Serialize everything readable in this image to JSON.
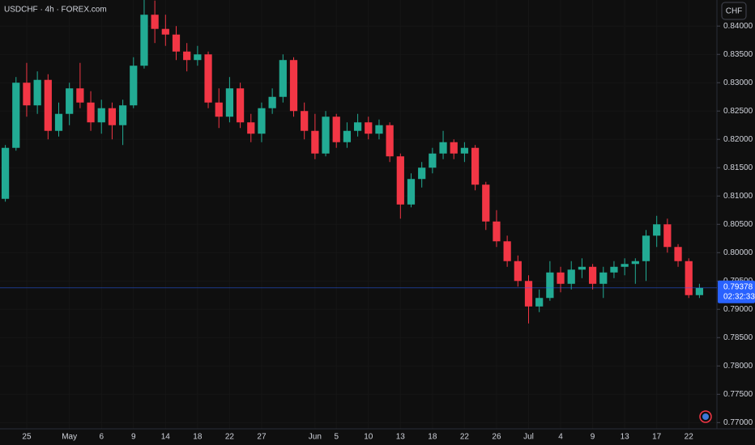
{
  "chart_data": {
    "type": "candlestick",
    "title": "USDCHF · 4h · FOREX.com",
    "currency": "CHF",
    "up_color": "#22ab94",
    "down_color": "#f23645",
    "grid": true,
    "categories": [
      null,
      null,
      "25",
      null,
      null,
      null,
      "May",
      null,
      null,
      "6",
      null,
      null,
      "9",
      null,
      null,
      "14",
      null,
      null,
      "18",
      null,
      null,
      "22",
      null,
      null,
      "27",
      null,
      null,
      null,
      null,
      "Jun",
      null,
      "5",
      null,
      null,
      "10",
      null,
      null,
      "13",
      null,
      null,
      "18",
      null,
      null,
      "22",
      null,
      null,
      "26",
      null,
      null,
      "Jul",
      null,
      null,
      "4",
      null,
      null,
      "9",
      null,
      null,
      "13",
      null,
      null,
      "17",
      null,
      null,
      "22",
      null
    ],
    "open": [
      0.8095,
      0.8185,
      0.83,
      0.826,
      0.8305,
      0.8215,
      0.8245,
      0.829,
      0.8265,
      0.823,
      0.8255,
      0.8225,
      0.826,
      0.833,
      0.842,
      0.8395,
      0.8385,
      0.8355,
      0.834,
      0.835,
      0.8265,
      0.824,
      0.829,
      0.823,
      0.821,
      0.8255,
      0.8275,
      0.834,
      0.825,
      0.8215,
      0.8175,
      0.824,
      0.8195,
      0.8215,
      0.823,
      0.821,
      0.8225,
      0.817,
      0.8085,
      0.813,
      0.815,
      0.8175,
      0.8195,
      0.8175,
      0.8185,
      0.812,
      0.8055,
      0.802,
      0.7985,
      0.795,
      0.7905,
      0.792,
      0.7965,
      0.7945,
      0.797,
      0.7975,
      0.7945,
      0.7965,
      0.7975,
      0.798,
      0.7985,
      0.803,
      0.805,
      0.801,
      0.7985,
      0.7925
    ],
    "high": [
      0.819,
      0.831,
      0.8335,
      0.832,
      0.8315,
      0.8265,
      0.83,
      0.8335,
      0.8285,
      0.827,
      0.8265,
      0.827,
      0.8345,
      0.845,
      0.8445,
      0.842,
      0.84,
      0.837,
      0.8365,
      0.8355,
      0.829,
      0.831,
      0.83,
      0.8245,
      0.8265,
      0.829,
      0.835,
      0.8345,
      0.8265,
      0.8245,
      0.825,
      0.8245,
      0.823,
      0.8245,
      0.824,
      0.8235,
      0.823,
      0.8175,
      0.814,
      0.816,
      0.8185,
      0.8215,
      0.82,
      0.8195,
      0.819,
      0.8125,
      0.8075,
      0.803,
      0.7995,
      0.796,
      0.7935,
      0.7985,
      0.7975,
      0.7985,
      0.799,
      0.798,
      0.7975,
      0.7985,
      0.799,
      0.799,
      0.804,
      0.8065,
      0.806,
      0.8015,
      0.799,
      0.7945
    ],
    "low": [
      0.809,
      0.818,
      0.824,
      0.8245,
      0.82,
      0.8205,
      0.8225,
      0.8255,
      0.8215,
      0.821,
      0.82,
      0.819,
      0.8255,
      0.8325,
      0.837,
      0.8365,
      0.834,
      0.832,
      0.833,
      0.8255,
      0.822,
      0.823,
      0.822,
      0.8195,
      0.8195,
      0.8245,
      0.8265,
      0.824,
      0.82,
      0.8165,
      0.817,
      0.8185,
      0.8185,
      0.8205,
      0.82,
      0.82,
      0.816,
      0.806,
      0.808,
      0.8115,
      0.814,
      0.8165,
      0.8165,
      0.816,
      0.811,
      0.804,
      0.801,
      0.7975,
      0.794,
      0.7875,
      0.7895,
      0.7915,
      0.793,
      0.7935,
      0.7955,
      0.7935,
      0.792,
      0.7955,
      0.796,
      0.7945,
      0.795,
      0.801,
      0.8,
      0.7975,
      0.792,
      0.792
    ],
    "close": [
      0.8185,
      0.83,
      0.826,
      0.8305,
      0.8215,
      0.8245,
      0.829,
      0.8265,
      0.823,
      0.8255,
      0.8225,
      0.826,
      0.833,
      0.842,
      0.8395,
      0.8385,
      0.8355,
      0.834,
      0.835,
      0.8265,
      0.824,
      0.829,
      0.823,
      0.821,
      0.8255,
      0.8275,
      0.834,
      0.825,
      0.8215,
      0.8175,
      0.824,
      0.8195,
      0.8215,
      0.823,
      0.821,
      0.8225,
      0.817,
      0.8085,
      0.813,
      0.815,
      0.8175,
      0.8195,
      0.8175,
      0.8185,
      0.812,
      0.8055,
      0.802,
      0.7985,
      0.795,
      0.7905,
      0.792,
      0.7965,
      0.7945,
      0.797,
      0.7975,
      0.7945,
      0.7965,
      0.7975,
      0.798,
      0.7985,
      0.803,
      0.805,
      0.801,
      0.7985,
      0.7925,
      0.7938
    ],
    "last_price": 0.79378,
    "last_price_color": "#2962ff",
    "countdown": "02:32:33",
    "ylim": [
      0.7689,
      0.8446
    ],
    "yticks": [
      {
        "value": 0.84,
        "label": "0.84000"
      },
      {
        "value": 0.835,
        "label": "0.83500"
      },
      {
        "value": 0.83,
        "label": "0.83000"
      },
      {
        "value": 0.825,
        "label": "0.82500"
      },
      {
        "value": 0.82,
        "label": "0.82000"
      },
      {
        "value": 0.815,
        "label": "0.81500"
      },
      {
        "value": 0.81,
        "label": "0.81000"
      },
      {
        "value": 0.805,
        "label": "0.80500"
      },
      {
        "value": 0.8,
        "label": "0.80000"
      },
      {
        "value": 0.795,
        "label": "0.79500"
      },
      {
        "value": 0.79,
        "label": "0.79000"
      },
      {
        "value": 0.785,
        "label": "0.78500"
      },
      {
        "value": 0.78,
        "label": "0.78000"
      },
      {
        "value": 0.775,
        "label": "0.77500"
      },
      {
        "value": 0.77,
        "label": "0.77000"
      }
    ]
  }
}
